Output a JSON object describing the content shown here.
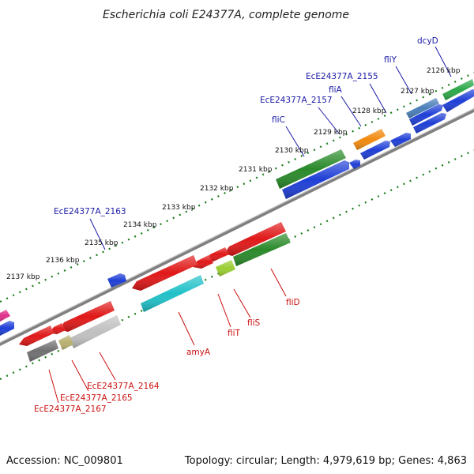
{
  "title": "Escherichia coli E24377A, complete genome",
  "footer": {
    "accession": "Accession: NC_009801",
    "summary": "Topology: circular; Length: 4,979,619 bp; Genes: 4,863"
  },
  "colors": {
    "forward_label": "#1a1aa6",
    "reverse_label": "#cc1010",
    "backbone": "#808080",
    "tick": "#1a7a1a",
    "pointer_forward": "#1a1aa6",
    "pointer_reverse": "#cc1010"
  },
  "ticks": [
    {
      "label": "2126 kbp"
    },
    {
      "label": "2127 kbp"
    },
    {
      "label": "2128 kbp"
    },
    {
      "label": "2129 kbp"
    },
    {
      "label": "2130 kbp"
    },
    {
      "label": "2131 kbp"
    },
    {
      "label": "2132 kbp"
    },
    {
      "label": "2133 kbp"
    },
    {
      "label": "2134 kbp"
    },
    {
      "label": "2135 kbp"
    },
    {
      "label": "2136 kbp"
    },
    {
      "label": "2137 kbp"
    }
  ],
  "forward_labels": [
    {
      "name": "dcyD"
    },
    {
      "name": "fliY"
    },
    {
      "name": "EcE24377A_2155"
    },
    {
      "name": "fliA"
    },
    {
      "name": "EcE24377A_2157"
    },
    {
      "name": "fliC"
    },
    {
      "name": "EcE24377A_2163"
    }
  ],
  "reverse_labels": [
    {
      "name": "fliD"
    },
    {
      "name": "fliS"
    },
    {
      "name": "fliT"
    },
    {
      "name": "amyA"
    },
    {
      "name": "EcE24377A_2164"
    },
    {
      "name": "EcE24377A_2165"
    },
    {
      "name": "EcE24377A_2167"
    }
  ],
  "genes": [
    {
      "id": "gene-dcyD",
      "color": "#1f3fd6"
    },
    {
      "id": "gene-dcyD-cog",
      "color": "#4a7fb8"
    },
    {
      "id": "gene-fliY",
      "color": "#1f3fd6"
    },
    {
      "id": "gene-fliY-cog",
      "color": "#2ea84a"
    },
    {
      "id": "gene-2155",
      "color": "#1f3fd6"
    },
    {
      "id": "gene-2155-b",
      "color": "#1f3fd6"
    },
    {
      "id": "gene-fliA",
      "color": "#1f3fd6"
    },
    {
      "id": "gene-fliA-cog",
      "color": "#f08a10"
    },
    {
      "id": "gene-2157",
      "color": "#1f3fd6"
    },
    {
      "id": "gene-fliC",
      "color": "#1f3fd6"
    },
    {
      "id": "gene-fliC-cog",
      "color": "#2a8a2a"
    },
    {
      "id": "gene-2163",
      "color": "#1f3fd6"
    },
    {
      "id": "gene-left-blue",
      "color": "#1f3fd6"
    },
    {
      "id": "gene-left-pink",
      "color": "#e0308a"
    },
    {
      "id": "gene-fliD",
      "color": "#e01818"
    },
    {
      "id": "gene-fliD-cog",
      "color": "#2a8a2a"
    },
    {
      "id": "gene-fliS",
      "color": "#e01818"
    },
    {
      "id": "gene-fliS-cog",
      "color": "#9acd32"
    },
    {
      "id": "gene-fliT",
      "color": "#e01818"
    },
    {
      "id": "gene-amyA",
      "color": "#e01818"
    },
    {
      "id": "gene-amyA-cog",
      "color": "#20c0c8"
    },
    {
      "id": "gene-2164",
      "color": "#e01818"
    },
    {
      "id": "gene-2164-cog",
      "color": "#c0c0c0"
    },
    {
      "id": "gene-2165",
      "color": "#e01818"
    },
    {
      "id": "gene-2165-cog",
      "color": "#b8b070"
    },
    {
      "id": "gene-2167",
      "color": "#e01818"
    },
    {
      "id": "gene-2167-cog",
      "color": "#707070"
    }
  ]
}
